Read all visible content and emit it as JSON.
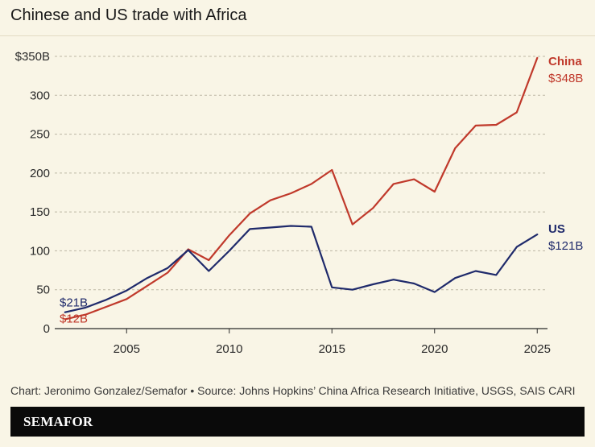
{
  "title": "Chinese and US trade with Africa",
  "source": "Chart: Jeronimo Gonzalez/Semafor • Source: Johns Hopkins’ China Africa Research Initiative, USGS, SAIS CARI",
  "brand": "SEMAFOR",
  "colors": {
    "china": "#c0392b",
    "us": "#1f2a6b",
    "background": "#f9f5e6",
    "grid": "#bdb7a4"
  },
  "chart_data": {
    "type": "line",
    "title": "Chinese and US trade with Africa",
    "xlabel": "",
    "ylabel": "",
    "xlim": [
      2001.5,
      2025.5
    ],
    "ylim": [
      0,
      350
    ],
    "xticks": [
      2005,
      2010,
      2015,
      2020,
      2025
    ],
    "yticks": [
      0,
      50,
      100,
      150,
      200,
      250,
      300,
      350
    ],
    "ytick_labels": [
      "0",
      "50",
      "100",
      "150",
      "200",
      "250",
      "300",
      "$350B"
    ],
    "grid": true,
    "series": [
      {
        "name": "China",
        "color": "#c0392b",
        "start_label": "$12B",
        "end_label": "$348B",
        "x": [
          2002,
          2003,
          2004,
          2005,
          2006,
          2007,
          2008,
          2009,
          2010,
          2011,
          2012,
          2013,
          2014,
          2015,
          2016,
          2017,
          2018,
          2019,
          2020,
          2021,
          2022,
          2023,
          2024,
          2025
        ],
        "values": [
          12,
          18,
          28,
          38,
          55,
          72,
          102,
          88,
          120,
          148,
          165,
          174,
          186,
          204,
          134,
          155,
          186,
          192,
          176,
          232,
          261,
          262,
          278,
          348
        ]
      },
      {
        "name": "US",
        "color": "#1f2a6b",
        "start_label": "$21B",
        "end_label": "$121B",
        "x": [
          2002,
          2003,
          2004,
          2005,
          2006,
          2007,
          2008,
          2009,
          2010,
          2011,
          2012,
          2013,
          2014,
          2015,
          2016,
          2017,
          2018,
          2019,
          2020,
          2021,
          2022,
          2023,
          2024,
          2025
        ],
        "values": [
          21,
          27,
          37,
          49,
          65,
          78,
          101,
          74,
          100,
          128,
          130,
          132,
          131,
          53,
          50,
          57,
          63,
          58,
          47,
          65,
          74,
          69,
          105,
          121
        ]
      }
    ]
  }
}
